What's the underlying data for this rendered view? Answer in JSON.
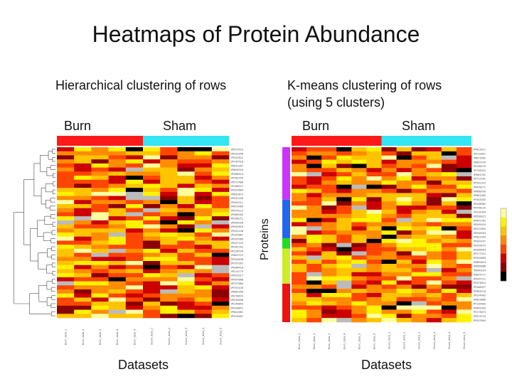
{
  "title": "Heatmaps of Protein Abundance",
  "panel_left": {
    "subtitle": "Hierarchical clustering of rows",
    "group_labels": [
      "Burn",
      "Sham"
    ],
    "xlabel": "Datasets"
  },
  "panel_right": {
    "subtitle_line1": "K-means clustering of rows",
    "subtitle_line2": "(using 5 clusters)",
    "group_labels": [
      "Burn",
      "Sham"
    ],
    "xlabel": "Datasets",
    "ylabel": "Proteins"
  },
  "colors": {
    "burn": "#ff1a1a",
    "sham": "#33e6f2",
    "clusters": [
      "#cc33ff",
      "#2266ee",
      "#22dd22",
      "#ccee22",
      "#ee1111"
    ],
    "heat": [
      "#000000",
      "#8b0000",
      "#cc0000",
      "#ff4500",
      "#ff8c00",
      "#ffc400",
      "#fff200",
      "#ffffa0"
    ],
    "missing": "#bbbbbb"
  },
  "chart_data": [
    {
      "type": "heatmap",
      "title": "Hierarchical clustering of rows",
      "xlabel": "Datasets",
      "groups": [
        "Burn",
        "Sham"
      ],
      "n_rows": 42,
      "n_cols": 10,
      "seed": 7
    },
    {
      "type": "heatmap",
      "title": "K-means clustering of rows (using 5 clusters)",
      "xlabel": "Datasets",
      "ylabel": "Proteins",
      "groups": [
        "Burn",
        "Sham"
      ],
      "n_rows": 42,
      "n_cols": 12,
      "clusters": 5,
      "seed": 11
    }
  ]
}
